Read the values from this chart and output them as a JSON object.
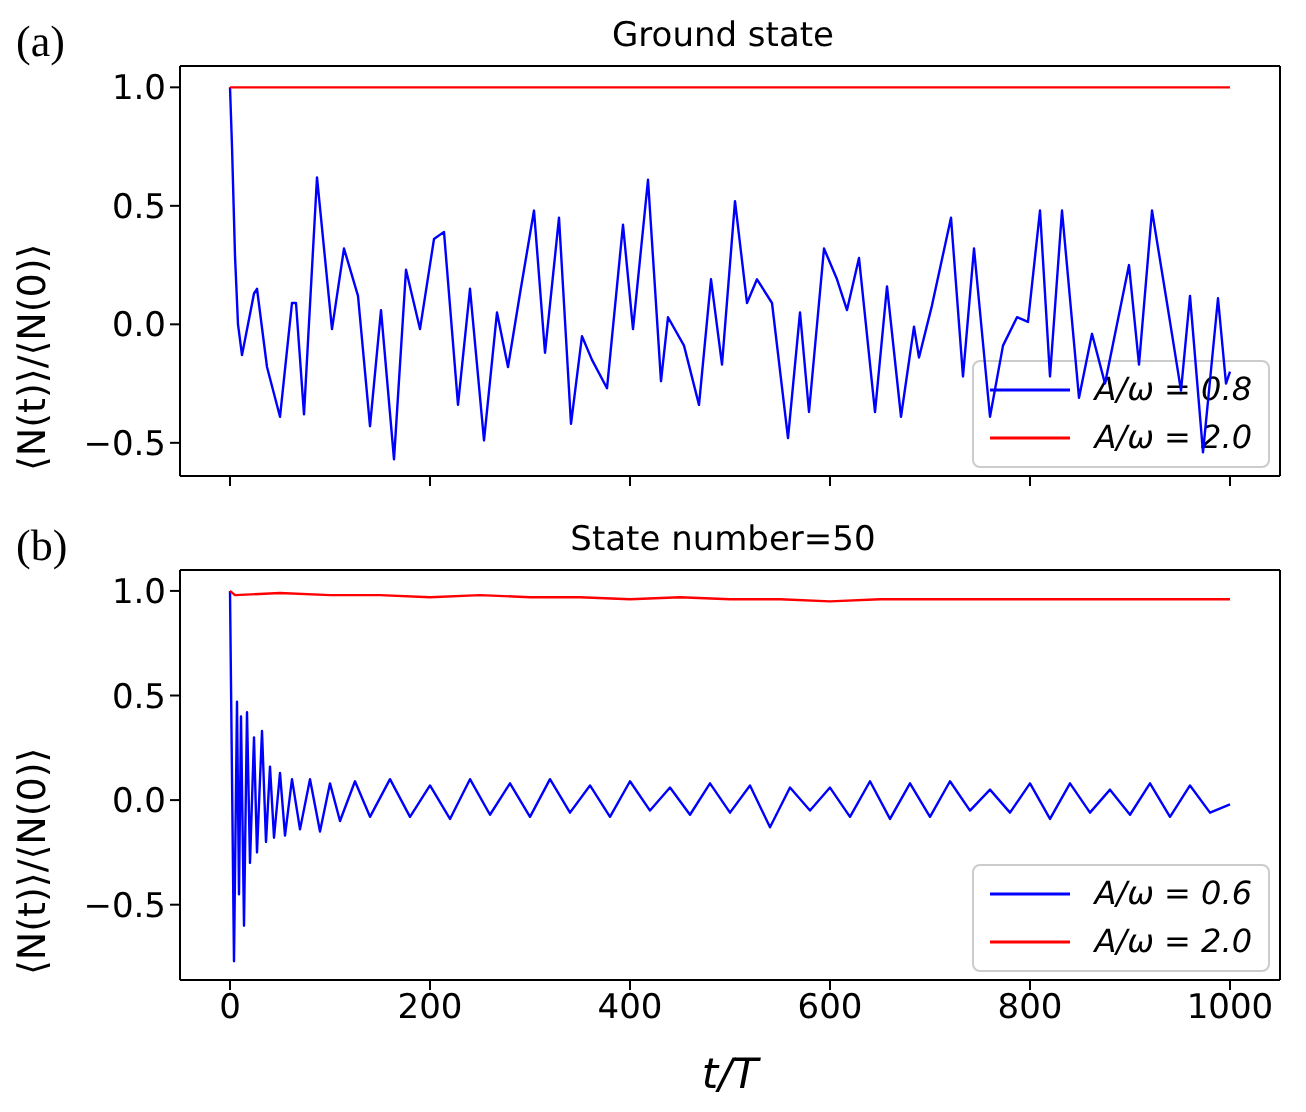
{
  "chart_data": [
    {
      "type": "line",
      "title": "Ground state",
      "ylabel": "⟨N(t)⟩/⟨N(0)⟩",
      "annotations": [
        "(a)"
      ],
      "legend": "bottom right",
      "tick_labels": "y",
      "xlim": [
        -50,
        1050
      ],
      "xticks": [
        {
          "value": 0,
          "label": null
        },
        {
          "value": 200,
          "label": null
        },
        {
          "value": 400,
          "label": null
        },
        {
          "value": 600,
          "label": null
        },
        {
          "value": 800,
          "label": null
        },
        {
          "value": 1000,
          "label": null
        }
      ],
      "ylim": [
        -0.64,
        1.09
      ],
      "yticks": [
        {
          "value": -0.5,
          "label": "−0.5"
        },
        {
          "value": 0,
          "label": "0.0"
        },
        {
          "value": 0.5,
          "label": "0.5"
        },
        {
          "value": 1,
          "label": "1.0"
        }
      ],
      "series": [
        {
          "name": "A/ω = 0.8",
          "color": "#0000ff",
          "x": [
            0,
            2,
            5,
            8,
            12,
            24,
            27,
            37,
            50,
            62,
            66,
            74,
            87,
            102,
            114,
            128,
            140,
            151,
            164,
            176,
            190,
            204,
            214,
            228,
            240,
            254,
            267,
            278,
            290,
            304,
            315,
            329,
            341,
            352,
            362,
            377,
            393,
            403,
            418,
            431,
            438,
            454,
            469,
            481,
            492,
            505,
            517,
            527,
            542,
            558,
            570,
            579,
            594,
            607,
            617,
            629,
            645,
            657,
            671,
            684,
            689,
            702,
            721,
            733,
            744,
            760,
            773,
            787,
            798,
            810,
            820,
            832,
            849,
            862,
            875,
            899,
            909,
            922,
            937,
            951,
            960,
            973,
            988,
            996,
            1000
          ],
          "values": [
            1.0,
            0.75,
            0.29,
            0.0,
            -0.13,
            0.13,
            0.15,
            -0.18,
            -0.39,
            0.09,
            0.09,
            -0.38,
            0.62,
            -0.02,
            0.32,
            0.12,
            -0.43,
            0.06,
            -0.57,
            0.23,
            -0.02,
            0.36,
            0.39,
            -0.34,
            0.15,
            -0.49,
            0.05,
            -0.18,
            0.13,
            0.48,
            -0.12,
            0.45,
            -0.42,
            -0.05,
            -0.15,
            -0.27,
            0.42,
            -0.02,
            0.61,
            -0.24,
            0.03,
            -0.09,
            -0.34,
            0.19,
            -0.17,
            0.52,
            0.09,
            0.19,
            0.09,
            -0.48,
            0.05,
            -0.37,
            0.32,
            0.19,
            0.06,
            0.28,
            -0.37,
            0.16,
            -0.39,
            -0.01,
            -0.14,
            0.08,
            0.45,
            -0.22,
            0.32,
            -0.39,
            -0.09,
            0.03,
            0.01,
            0.48,
            -0.22,
            0.48,
            -0.31,
            -0.04,
            -0.25,
            0.25,
            -0.17,
            0.48,
            0.09,
            -0.28,
            0.12,
            -0.54,
            0.11,
            -0.25,
            -0.2
          ]
        },
        {
          "name": "A/ω = 2.0",
          "color": "#ff0000",
          "x": [
            0,
            1000
          ],
          "values": [
            1.0,
            1.0
          ]
        }
      ]
    },
    {
      "type": "line",
      "title": "State number=50",
      "xlabel": "t/T",
      "ylabel": "⟨N(t)⟩/⟨N(0)⟩",
      "annotations": [
        "(b)"
      ],
      "legend": "bottom right",
      "xlim": [
        -50,
        1050
      ],
      "xticks": [
        0,
        200,
        400,
        600,
        800,
        1000
      ],
      "ylim": [
        -0.86,
        1.1
      ],
      "yticks": [
        {
          "value": -0.5,
          "label": "−0.5"
        },
        {
          "value": 0,
          "label": "0.0"
        },
        {
          "value": 0.5,
          "label": "0.5"
        },
        {
          "value": 1,
          "label": "1.0"
        }
      ],
      "series": [
        {
          "name": "A/ω = 0.6",
          "color": "#0000ff",
          "x": [
            0,
            4,
            7,
            9,
            11,
            14,
            17,
            20,
            24,
            27,
            32,
            36,
            40,
            44,
            50,
            55,
            62,
            70,
            80,
            90,
            100,
            110,
            125,
            140,
            160,
            180,
            200,
            220,
            240,
            260,
            280,
            300,
            320,
            340,
            360,
            380,
            400,
            420,
            440,
            460,
            480,
            500,
            520,
            540,
            560,
            580,
            600,
            620,
            640,
            660,
            680,
            700,
            720,
            740,
            760,
            780,
            800,
            820,
            840,
            860,
            880,
            900,
            920,
            940,
            960,
            980,
            1000
          ],
          "values": [
            1.0,
            -0.77,
            0.47,
            -0.45,
            0.4,
            -0.6,
            0.42,
            -0.3,
            0.3,
            -0.25,
            0.33,
            -0.2,
            0.16,
            -0.18,
            0.13,
            -0.17,
            0.1,
            -0.14,
            0.1,
            -0.15,
            0.08,
            -0.1,
            0.09,
            -0.08,
            0.1,
            -0.08,
            0.07,
            -0.09,
            0.1,
            -0.07,
            0.08,
            -0.08,
            0.1,
            -0.06,
            0.07,
            -0.08,
            0.09,
            -0.05,
            0.06,
            -0.07,
            0.08,
            -0.06,
            0.07,
            -0.13,
            0.06,
            -0.05,
            0.06,
            -0.08,
            0.09,
            -0.09,
            0.08,
            -0.08,
            0.09,
            -0.05,
            0.05,
            -0.06,
            0.08,
            -0.09,
            0.08,
            -0.06,
            0.05,
            -0.07,
            0.08,
            -0.08,
            0.07,
            -0.06,
            -0.02
          ]
        },
        {
          "name": "A/ω = 2.0",
          "color": "#ff0000",
          "x": [
            0,
            5,
            50,
            100,
            150,
            200,
            250,
            300,
            350,
            400,
            450,
            500,
            550,
            600,
            650,
            700,
            750,
            800,
            850,
            900,
            950,
            1000
          ],
          "values": [
            1.0,
            0.98,
            0.99,
            0.98,
            0.98,
            0.97,
            0.98,
            0.97,
            0.97,
            0.96,
            0.97,
            0.96,
            0.96,
            0.95,
            0.96,
            0.96,
            0.96,
            0.96,
            0.96,
            0.96,
            0.96,
            0.96
          ]
        }
      ]
    }
  ]
}
